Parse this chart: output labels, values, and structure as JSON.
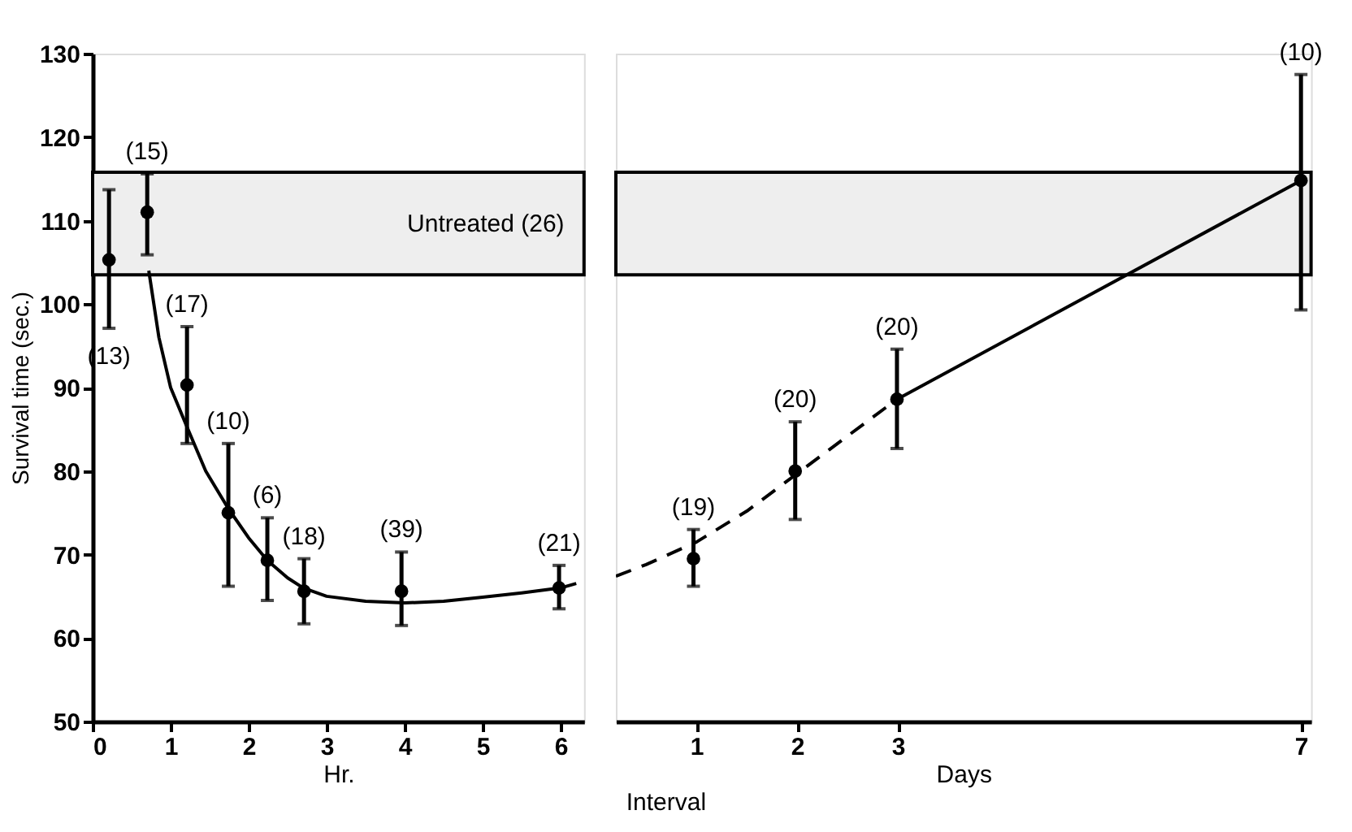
{
  "chart_data": [
    {
      "type": "scatter",
      "ylabel": "Survival time (sec.)",
      "xlabel": "Hr.",
      "xlim": [
        0,
        6.3
      ],
      "xticks": [
        0,
        1,
        2,
        3,
        4,
        5,
        6
      ],
      "ylim": [
        50,
        130
      ],
      "yticks": [
        50,
        60,
        70,
        80,
        90,
        100,
        110,
        120,
        130
      ],
      "grid": false,
      "bands": [
        {
          "axis": "y",
          "from": 103.5,
          "to": 115.8,
          "label": "Untreated (26)",
          "color": "#eeeeee"
        }
      ],
      "series": [
        {
          "color": "#000000",
          "marker": "circle",
          "x": [
            0.21,
            0.7,
            1.21,
            1.74,
            2.24,
            2.71,
            3.96,
            5.98
          ],
          "values": [
            105.3,
            111,
            90.3,
            75,
            69.3,
            65.6,
            65.6,
            66
          ],
          "errors": [
            [
              97.1,
              113.7
            ],
            [
              105.9,
              115.6
            ],
            [
              83.3,
              97.3
            ],
            [
              66.2,
              83.3
            ],
            [
              64.5,
              74.4
            ],
            [
              61.7,
              69.5
            ],
            [
              61.5,
              70.3
            ],
            [
              63.5,
              68.7
            ]
          ]
        },
        {
          "type": "line",
          "color": "#000000",
          "line_style": "solid",
          "marker": "none",
          "x": [
            0.72,
            0.85,
            1.0,
            1.2,
            1.45,
            1.74,
            2.0,
            2.24,
            2.5,
            2.7,
            3.0,
            3.5,
            4.0,
            4.5,
            5.0,
            5.5,
            6.0
          ],
          "values": [
            104,
            96,
            90,
            85.5,
            80,
            75.5,
            72,
            69.3,
            67.2,
            66,
            65,
            64.4,
            64.2,
            64.4,
            64.9,
            65.4,
            66
          ]
        },
        {
          "type": "line",
          "color": "#000000",
          "line_style": "dashed",
          "marker": "none",
          "x": [
            6.0,
            6.3
          ],
          "values": [
            66,
            66.8
          ]
        }
      ],
      "annotations": [
        {
          "text": "(13)",
          "x": 0.21,
          "y": 97.1
        },
        {
          "text": "(15)",
          "x": 0.7,
          "y": 115.6
        },
        {
          "text": "(17)",
          "x": 1.21,
          "y": 97.3
        },
        {
          "text": "(10)",
          "x": 1.74,
          "y": 83.3
        },
        {
          "text": "(6)",
          "x": 2.24,
          "y": 74.4
        },
        {
          "text": "(18)",
          "x": 2.71,
          "y": 69.5
        },
        {
          "text": "(39)",
          "x": 3.96,
          "y": 70.3
        },
        {
          "text": "(21)",
          "x": 5.98,
          "y": 68.7
        }
      ]
    },
    {
      "type": "scatter",
      "xlabel": "Days",
      "xlim": [
        0.2,
        7.1
      ],
      "xticks": [
        1,
        2,
        3,
        7
      ],
      "ylim": [
        50,
        130
      ],
      "grid": false,
      "tick_labels": "x",
      "bands": [
        {
          "axis": "y",
          "from": 103.5,
          "to": 115.8,
          "color": "#eeeeee"
        }
      ],
      "series": [
        {
          "color": "#000000",
          "marker": "circle",
          "x": [
            0.97,
            1.98,
            2.99,
            7
          ],
          "values": [
            69.5,
            80,
            88.6,
            114.8
          ],
          "errors": [
            [
              66.2,
              73
            ],
            [
              74.2,
              85.9
            ],
            [
              82.7,
              94.6
            ],
            [
              99.3,
              127.5
            ]
          ]
        },
        {
          "type": "line",
          "color": "#000000",
          "line_style": "dashed",
          "marker": "none",
          "x": [
            0.2,
            0.5,
            1.0,
            1.5,
            2.0,
            2.5,
            2.99
          ],
          "values": [
            67.4,
            68.8,
            71.5,
            75.2,
            79.7,
            84.2,
            88.6
          ]
        },
        {
          "type": "line",
          "color": "#000000",
          "line_style": "solid",
          "marker": "none",
          "x": [
            2.99,
            7
          ],
          "values": [
            88.6,
            114.8
          ]
        }
      ],
      "annotations": [
        {
          "text": "(19)",
          "x": 0.97,
          "y": 73
        },
        {
          "text": "(20)",
          "x": 1.98,
          "y": 85.9
        },
        {
          "text": "(20)",
          "x": 2.99,
          "y": 94.6
        },
        {
          "text": "(10)",
          "x": 7,
          "y": 127.5
        },
        "Interval"
      ]
    }
  ]
}
